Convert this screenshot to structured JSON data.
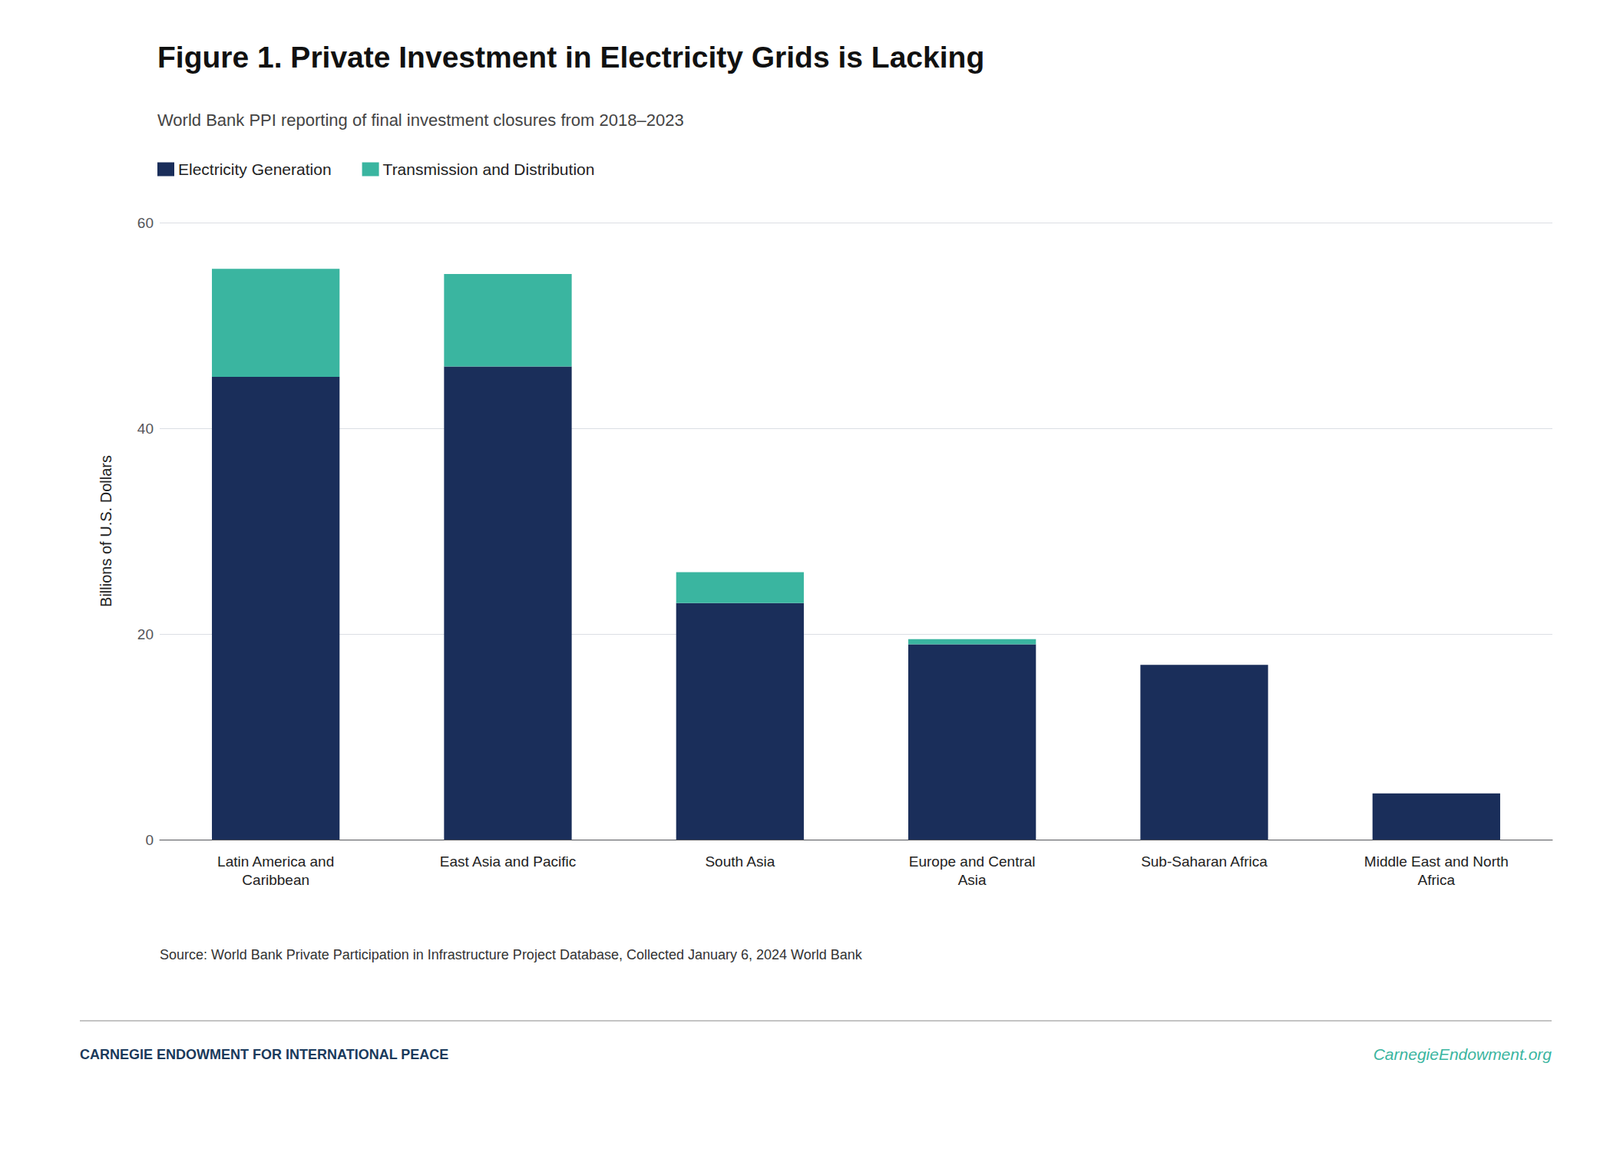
{
  "chart_data": {
    "type": "bar",
    "title": "Figure 1. Private Investment in Electricity Grids is Lacking",
    "subtitle": "World Bank PPI reporting of final investment closures from 2018–2023",
    "categories": [
      "Latin America and\nCaribbean",
      "East Asia and Pacific",
      "South Asia",
      "Europe and Central\nAsia",
      "Sub-Saharan Africa",
      "Middle East and North\nAfrica"
    ],
    "series": [
      {
        "name": "Electricity Generation",
        "color": "#1a2e5a",
        "values": [
          45.0,
          46.0,
          23.0,
          19.0,
          17.0,
          4.5
        ]
      },
      {
        "name": "Transmission and Distribution",
        "color": "#3ab5a0",
        "values": [
          10.5,
          9.0,
          3.0,
          0.5,
          0.0,
          0.0
        ]
      }
    ],
    "stacked": true,
    "ylabel": "Billions of U.S. Dollars",
    "ylim": [
      0,
      60
    ],
    "yticks": [
      0,
      20,
      40,
      60
    ],
    "grid": true,
    "legend": "upper left",
    "annotations": [
      {
        "text": "Source: World Bank Private Participation in Infrastructure Project Database, Collected January 6, 2024 World Bank"
      },
      {
        "text": "CARNEGIE ENDOWMENT FOR INTERNATIONAL PEACE",
        "color": "#1a3a5c"
      },
      {
        "text": "CarnegieEndowment.org",
        "color": "#3ab5a0"
      }
    ]
  }
}
